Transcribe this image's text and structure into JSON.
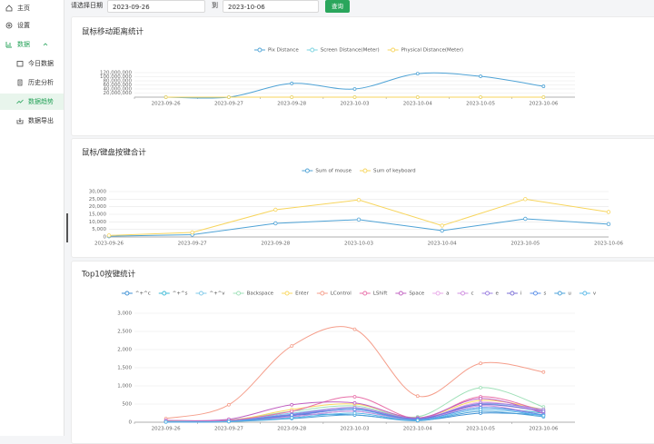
{
  "sidebar": {
    "items": [
      "主页",
      "设置",
      "数据"
    ],
    "subitems": [
      "今日数据",
      "历史分析",
      "数据趋势",
      "数据导出"
    ]
  },
  "filter": {
    "label": "请选择日期",
    "start": "2023-09-26",
    "separator": "到",
    "end": "2023-10-06",
    "button": "查询"
  },
  "chart_data": [
    {
      "type": "line",
      "smooth": true,
      "title": "鼠标移动距离统计",
      "categories": [
        "2023-09-26",
        "2023-09-27",
        "2023-09-28",
        "2023-10-03",
        "2023-10-04",
        "2023-10-05",
        "2023-10-06"
      ],
      "ylim": [
        0,
        120000000
      ],
      "yticks": [
        {
          "value": 20000000,
          "label": "20,000,000"
        },
        {
          "value": 40000000,
          "label": "40,000,000"
        },
        {
          "value": 60000000,
          "label": "60,000,000"
        },
        {
          "value": 80000000,
          "label": "80,000,000"
        },
        {
          "value": 100000000,
          "label": "100,000,000"
        },
        {
          "value": 120000000,
          "label": "120,000,000"
        }
      ],
      "grid": true,
      "series": [
        {
          "name": "Pix Distance",
          "color": "#4fa3d6",
          "values": [
            0,
            0,
            67000000,
            40000000,
            115000000,
            102000000,
            53000000
          ]
        },
        {
          "name": "Screen Distance(Meter)",
          "color": "#7ad3e0",
          "values": [
            0,
            0,
            0,
            0,
            0,
            0,
            0
          ]
        },
        {
          "name": "Physical Distance(Meter)",
          "color": "#f7d55d",
          "values": [
            0,
            0,
            0,
            0,
            0,
            0,
            0
          ]
        }
      ]
    },
    {
      "type": "line",
      "smooth": false,
      "title": "鼠标/键盘按键合计",
      "categories": [
        "2023-09-26",
        "2023-09-27",
        "2023-09-28",
        "2023-10-03",
        "2023-10-04",
        "2023-10-05",
        "2023-10-06"
      ],
      "ylim": [
        0,
        30000
      ],
      "yticks": [
        0,
        {
          "value": 5000,
          "label": "5,000"
        },
        {
          "value": 10000,
          "label": "10,000"
        },
        {
          "value": 15000,
          "label": "15,000"
        },
        {
          "value": 20000,
          "label": "20,000"
        },
        {
          "value": 25000,
          "label": "25,000"
        },
        {
          "value": 30000,
          "label": "30,000"
        }
      ],
      "grid": true,
      "series": [
        {
          "name": "Sum of mouse",
          "color": "#4fa3d6",
          "values": [
            500,
            1500,
            9000,
            11500,
            4200,
            12000,
            8500
          ]
        },
        {
          "name": "Sum of keyboard",
          "color": "#f7d55d",
          "values": [
            1000,
            3000,
            18000,
            24500,
            7500,
            25000,
            16500
          ]
        }
      ]
    },
    {
      "type": "line",
      "smooth": true,
      "title": "Top10按键统计",
      "categories": [
        "2023-09-26",
        "2023-09-27",
        "2023-09-28",
        "2023-10-03",
        "2023-10-04",
        "2023-10-05",
        "2023-10-06"
      ],
      "ylim": [
        0,
        3000
      ],
      "yticks": [
        0,
        500,
        {
          "value": 1000,
          "label": "1,000"
        },
        {
          "value": 1500,
          "label": "1,500"
        },
        {
          "value": 2000,
          "label": "2,000"
        },
        {
          "value": 2500,
          "label": "2,500"
        },
        {
          "value": 3000,
          "label": "3,000"
        }
      ],
      "grid": true,
      "series": [
        {
          "name": "^+^c",
          "color": "#3b8fd4",
          "values": [
            20,
            50,
            200,
            200,
            50,
            250,
            200
          ]
        },
        {
          "name": "^+^s",
          "color": "#3bb9d6",
          "values": [
            10,
            30,
            150,
            300,
            80,
            400,
            250
          ]
        },
        {
          "name": "^+^v",
          "color": "#7fc8e8",
          "values": [
            15,
            40,
            250,
            380,
            100,
            500,
            300
          ]
        },
        {
          "name": "Backspace",
          "color": "#9fe0b8",
          "values": [
            30,
            60,
            300,
            450,
            150,
            950,
            420
          ]
        },
        {
          "name": "Enter",
          "color": "#fad860",
          "values": [
            20,
            40,
            350,
            500,
            120,
            600,
            350
          ]
        },
        {
          "name": "LControl",
          "color": "#f59e8b",
          "values": [
            100,
            480,
            2100,
            2560,
            720,
            1620,
            1380
          ]
        },
        {
          "name": "LShift",
          "color": "#e86fa8",
          "values": [
            10,
            50,
            300,
            700,
            100,
            700,
            300
          ]
        },
        {
          "name": "Space",
          "color": "#c05fc0",
          "values": [
            50,
            80,
            480,
            530,
            120,
            650,
            250
          ]
        },
        {
          "name": "a",
          "color": "#e8a8e8",
          "values": [
            10,
            30,
            200,
            400,
            80,
            550,
            300
          ]
        },
        {
          "name": "c",
          "color": "#d08fe0",
          "values": [
            10,
            20,
            150,
            300,
            60,
            450,
            200
          ]
        },
        {
          "name": "e",
          "color": "#9b7fe0",
          "values": [
            15,
            30,
            220,
            400,
            100,
            520,
            350
          ]
        },
        {
          "name": "i",
          "color": "#7b6fd6",
          "values": [
            10,
            20,
            180,
            350,
            90,
            480,
            300
          ]
        },
        {
          "name": "s",
          "color": "#5a8fe8",
          "values": [
            10,
            25,
            200,
            350,
            70,
            400,
            200
          ]
        },
        {
          "name": "u",
          "color": "#4aa0d8",
          "values": [
            5,
            15,
            100,
            200,
            40,
            300,
            150
          ]
        },
        {
          "name": "v",
          "color": "#5ab8e8",
          "values": [
            8,
            20,
            120,
            250,
            50,
            350,
            180
          ]
        }
      ]
    }
  ]
}
